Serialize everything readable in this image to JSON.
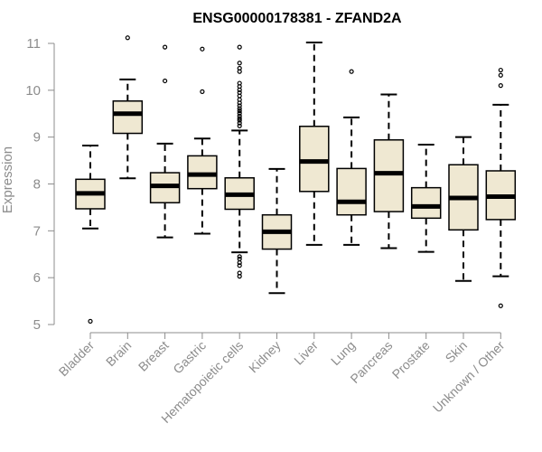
{
  "colors": {
    "box_fill": "#efe8d2",
    "stroke": "#000000",
    "axis": "#8c8c8c"
  },
  "chart_data": {
    "type": "boxplot",
    "title": "ENSG00000178381 - ZFAND2A",
    "xlabel": "",
    "ylabel": "Expression",
    "ylim": [
      5,
      11
    ],
    "yticks": [
      5,
      6,
      7,
      8,
      9,
      10,
      11
    ],
    "ytick_labels": [
      "5",
      "6",
      "7",
      "8",
      "9",
      "10",
      "11"
    ],
    "grid": false,
    "categories": [
      "Bladder",
      "Brain",
      "Breast",
      "Gastric",
      "Hematopoietic cells",
      "Kidney",
      "Liver",
      "Lung",
      "Pancreas",
      "Prostate",
      "Skin",
      "Unknown / Other"
    ],
    "boxes": [
      {
        "category": "Bladder",
        "whisker_low": 7.05,
        "q1": 7.47,
        "median": 7.8,
        "q3": 8.1,
        "whisker_high": 8.82,
        "outliers": [
          5.07
        ]
      },
      {
        "category": "Brain",
        "whisker_low": 8.12,
        "q1": 9.08,
        "median": 9.5,
        "q3": 9.77,
        "whisker_high": 10.23,
        "outliers": [
          11.12
        ]
      },
      {
        "category": "Breast",
        "whisker_low": 6.86,
        "q1": 7.6,
        "median": 7.96,
        "q3": 8.24,
        "whisker_high": 8.86,
        "outliers": [
          10.2,
          10.92
        ]
      },
      {
        "category": "Gastric",
        "whisker_low": 6.94,
        "q1": 7.9,
        "median": 8.2,
        "q3": 8.6,
        "whisker_high": 8.97,
        "outliers": [
          9.97,
          10.88
        ]
      },
      {
        "category": "Hematopoietic cells",
        "whisker_low": 6.54,
        "q1": 7.46,
        "median": 7.77,
        "q3": 8.13,
        "whisker_high": 9.14,
        "outliers": [
          6.03,
          6.1,
          6.26,
          6.32,
          6.4,
          6.45,
          9.24,
          9.3,
          9.36,
          9.4,
          9.45,
          9.51,
          9.56,
          9.61,
          9.67,
          9.73,
          9.8,
          9.88,
          9.95,
          10.01,
          10.08,
          10.15,
          10.4,
          10.47,
          10.58,
          10.92
        ]
      },
      {
        "category": "Kidney",
        "whisker_low": 5.67,
        "q1": 6.61,
        "median": 6.98,
        "q3": 7.34,
        "whisker_high": 8.32,
        "outliers": []
      },
      {
        "category": "Liver",
        "whisker_low": 6.7,
        "q1": 7.84,
        "median": 8.48,
        "q3": 9.23,
        "whisker_high": 11.02,
        "outliers": []
      },
      {
        "category": "Lung",
        "whisker_low": 6.7,
        "q1": 7.34,
        "median": 7.62,
        "q3": 8.33,
        "whisker_high": 9.42,
        "outliers": [
          10.4
        ]
      },
      {
        "category": "Pancreas",
        "whisker_low": 6.63,
        "q1": 7.41,
        "median": 8.23,
        "q3": 8.94,
        "whisker_high": 9.91,
        "outliers": []
      },
      {
        "category": "Prostate",
        "whisker_low": 6.55,
        "q1": 7.27,
        "median": 7.52,
        "q3": 7.92,
        "whisker_high": 8.84,
        "outliers": []
      },
      {
        "category": "Skin",
        "whisker_low": 5.93,
        "q1": 7.02,
        "median": 7.7,
        "q3": 8.41,
        "whisker_high": 9.0,
        "outliers": []
      },
      {
        "category": "Unknown / Other",
        "whisker_low": 6.03,
        "q1": 7.24,
        "median": 7.73,
        "q3": 8.28,
        "whisker_high": 9.69,
        "outliers": [
          5.4,
          10.1,
          10.32,
          10.43
        ]
      }
    ]
  }
}
